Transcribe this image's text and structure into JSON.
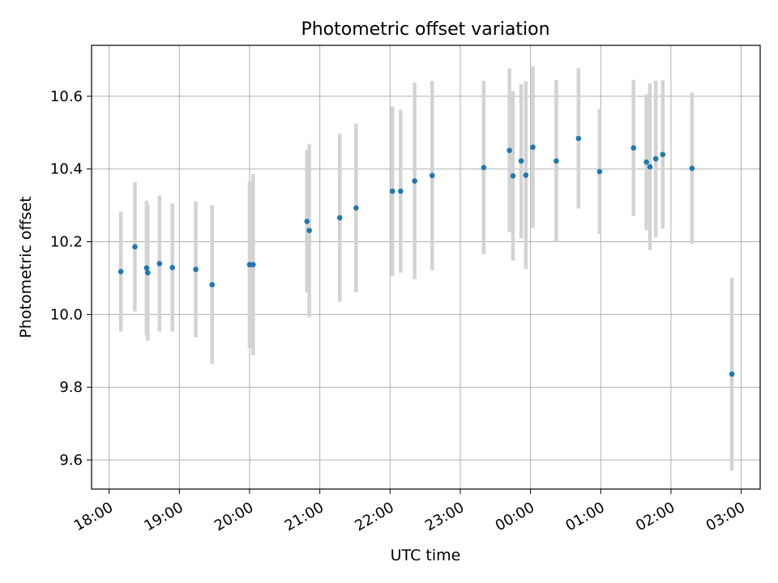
{
  "chart_data": {
    "type": "scatter",
    "title": "Photometric offset variation",
    "xlabel": "UTC time",
    "ylabel": "Photometric offset",
    "x_tick_labels": [
      "18:00",
      "19:00",
      "20:00",
      "21:00",
      "22:00",
      "23:00",
      "00:00",
      "01:00",
      "02:00",
      "03:00"
    ],
    "y_tick_labels": [
      "9.6",
      "9.8",
      "10.0",
      "10.2",
      "10.4",
      "10.6"
    ],
    "x_range_hours": [
      17.75,
      27.27
    ],
    "y_range": [
      9.52,
      10.74
    ],
    "grid": true,
    "colors": {
      "point": "#1f77b4",
      "errorbar": "#d3d3d3",
      "grid": "#b0b0b0"
    },
    "points": [
      {
        "t": "18:10",
        "y": 10.118,
        "err": 0.165
      },
      {
        "t": "18:22",
        "y": 10.186,
        "err": 0.178
      },
      {
        "t": "18:32",
        "y": 10.128,
        "err": 0.185
      },
      {
        "t": "18:33",
        "y": 10.115,
        "err": 0.187
      },
      {
        "t": "18:43",
        "y": 10.14,
        "err": 0.187
      },
      {
        "t": "18:54",
        "y": 10.129,
        "err": 0.176
      },
      {
        "t": "19:14",
        "y": 10.124,
        "err": 0.187
      },
      {
        "t": "19:28",
        "y": 10.082,
        "err": 0.218
      },
      {
        "t": "20:00",
        "y": 10.137,
        "err": 0.229
      },
      {
        "t": "20:03",
        "y": 10.137,
        "err": 0.249
      },
      {
        "t": "20:49",
        "y": 10.256,
        "err": 0.196
      },
      {
        "t": "20:51",
        "y": 10.231,
        "err": 0.238
      },
      {
        "t": "21:17",
        "y": 10.266,
        "err": 0.231
      },
      {
        "t": "21:31",
        "y": 10.293,
        "err": 0.232
      },
      {
        "t": "22:02",
        "y": 10.339,
        "err": 0.233
      },
      {
        "t": "22:09",
        "y": 10.339,
        "err": 0.224
      },
      {
        "t": "22:21",
        "y": 10.367,
        "err": 0.27
      },
      {
        "t": "22:36",
        "y": 10.382,
        "err": 0.26
      },
      {
        "t": "23:20",
        "y": 10.404,
        "err": 0.238
      },
      {
        "t": "23:42",
        "y": 10.451,
        "err": 0.225
      },
      {
        "t": "23:45",
        "y": 10.381,
        "err": 0.233
      },
      {
        "t": "23:52",
        "y": 10.422,
        "err": 0.212
      },
      {
        "t": "23:56",
        "y": 10.383,
        "err": 0.258
      },
      {
        "t": "00:02",
        "y": 10.46,
        "err": 0.222
      },
      {
        "t": "00:22",
        "y": 10.422,
        "err": 0.222
      },
      {
        "t": "00:41",
        "y": 10.484,
        "err": 0.193
      },
      {
        "t": "00:59",
        "y": 10.393,
        "err": 0.172
      },
      {
        "t": "01:28",
        "y": 10.458,
        "err": 0.187
      },
      {
        "t": "01:39",
        "y": 10.419,
        "err": 0.187
      },
      {
        "t": "01:42",
        "y": 10.406,
        "err": 0.229
      },
      {
        "t": "01:47",
        "y": 10.428,
        "err": 0.215
      },
      {
        "t": "01:53",
        "y": 10.44,
        "err": 0.204
      },
      {
        "t": "02:18",
        "y": 10.402,
        "err": 0.208
      },
      {
        "t": "02:52",
        "y": 9.836,
        "err": 0.265
      }
    ]
  }
}
